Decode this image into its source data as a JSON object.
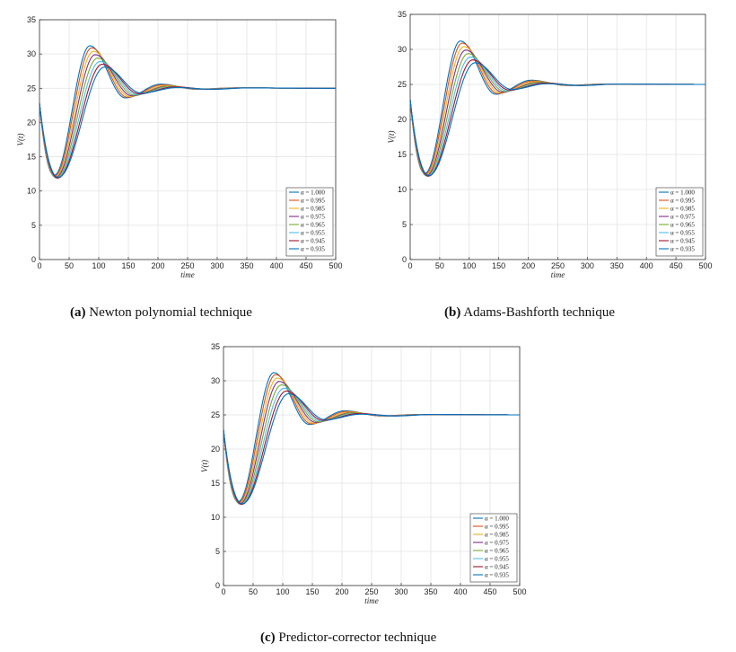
{
  "figure": {
    "captions": [
      {
        "letter": "(a)",
        "text": " Newton polynomial technique"
      },
      {
        "letter": "(b)",
        "text": " Adams-Bashforth technique"
      },
      {
        "letter": "(c)",
        "text": " Predictor-corrector technique"
      }
    ]
  },
  "chart_data": [
    {
      "type": "line",
      "title": "",
      "xlabel": "time",
      "ylabel": "V(t)",
      "xlim": [
        0,
        500
      ],
      "ylim": [
        0,
        35
      ],
      "xticks": [
        "0",
        "50",
        "100",
        "150",
        "200",
        "250",
        "300",
        "350",
        "400",
        "450",
        "500"
      ],
      "yticks": [
        "0",
        "5",
        "10",
        "15",
        "20",
        "25",
        "30",
        "35"
      ],
      "grid": true,
      "legend_position": "lower-right",
      "series": [
        {
          "name": "α = 1.000",
          "color": "#0072BD",
          "min_x": 25,
          "min_y": 12.3,
          "peak_x": 85,
          "peak_y": 31.2,
          "trough_x": 145,
          "trough_y": 23.6,
          "second_peak_x": 205,
          "second_peak_y": 25.6,
          "steady": 25.0
        },
        {
          "name": "α = 0.995",
          "color": "#D95319",
          "min_x": 26,
          "min_y": 12.2,
          "peak_x": 88,
          "peak_y": 30.9,
          "trough_x": 148,
          "trough_y": 23.7,
          "second_peak_x": 208,
          "second_peak_y": 25.5,
          "steady": 25.0
        },
        {
          "name": "α = 0.985",
          "color": "#EDB120",
          "min_x": 27,
          "min_y": 12.1,
          "peak_x": 91,
          "peak_y": 30.4,
          "trough_x": 152,
          "trough_y": 23.8,
          "second_peak_x": 212,
          "second_peak_y": 25.4,
          "steady": 25.0
        },
        {
          "name": "α = 0.975",
          "color": "#7E2F8E",
          "min_x": 28,
          "min_y": 12.0,
          "peak_x": 94,
          "peak_y": 29.9,
          "trough_x": 156,
          "trough_y": 23.9,
          "second_peak_x": 216,
          "second_peak_y": 25.3,
          "steady": 25.0
        },
        {
          "name": "α = 0.965",
          "color": "#77AC30",
          "min_x": 29,
          "min_y": 11.9,
          "peak_x": 98,
          "peak_y": 29.4,
          "trough_x": 160,
          "trough_y": 24.0,
          "second_peak_x": 220,
          "second_peak_y": 25.3,
          "steady": 25.0
        },
        {
          "name": "α = 0.955",
          "color": "#4DBEEE",
          "min_x": 30,
          "min_y": 11.9,
          "peak_x": 102,
          "peak_y": 28.9,
          "trough_x": 164,
          "trough_y": 24.1,
          "second_peak_x": 224,
          "second_peak_y": 25.2,
          "steady": 25.0
        },
        {
          "name": "α = 0.945",
          "color": "#A2142F",
          "min_x": 31,
          "min_y": 11.9,
          "peak_x": 106,
          "peak_y": 28.5,
          "trough_x": 168,
          "trough_y": 24.2,
          "second_peak_x": 228,
          "second_peak_y": 25.2,
          "steady": 25.0
        },
        {
          "name": "α = 0.935",
          "color": "#0072BD",
          "min_x": 32,
          "min_y": 12.0,
          "peak_x": 110,
          "peak_y": 28.1,
          "trough_x": 172,
          "trough_y": 24.3,
          "second_peak_x": 232,
          "second_peak_y": 25.1,
          "steady": 25.0
        }
      ]
    },
    {
      "type": "line",
      "title": "",
      "xlabel": "time",
      "ylabel": "V(t)",
      "xlim": [
        0,
        500
      ],
      "ylim": [
        0,
        35
      ],
      "xticks": [
        "0",
        "50",
        "100",
        "150",
        "200",
        "250",
        "300",
        "350",
        "400",
        "450",
        "500"
      ],
      "yticks": [
        "0",
        "5",
        "10",
        "15",
        "20",
        "25",
        "30",
        "35"
      ],
      "grid": true,
      "legend_position": "lower-right",
      "series": [
        {
          "name": "α = 1.000",
          "color": "#0072BD",
          "min_x": 25,
          "min_y": 12.3,
          "peak_x": 85,
          "peak_y": 31.2,
          "trough_x": 145,
          "trough_y": 23.6,
          "second_peak_x": 205,
          "second_peak_y": 25.6,
          "steady": 25.0
        },
        {
          "name": "α = 0.995",
          "color": "#D95319",
          "min_x": 26,
          "min_y": 12.2,
          "peak_x": 88,
          "peak_y": 30.9,
          "trough_x": 148,
          "trough_y": 23.7,
          "second_peak_x": 208,
          "second_peak_y": 25.5,
          "steady": 25.0
        },
        {
          "name": "α = 0.985",
          "color": "#EDB120",
          "min_x": 27,
          "min_y": 12.1,
          "peak_x": 91,
          "peak_y": 30.4,
          "trough_x": 152,
          "trough_y": 23.8,
          "second_peak_x": 212,
          "second_peak_y": 25.4,
          "steady": 25.0
        },
        {
          "name": "α = 0.975",
          "color": "#7E2F8E",
          "min_x": 28,
          "min_y": 12.0,
          "peak_x": 94,
          "peak_y": 29.9,
          "trough_x": 156,
          "trough_y": 23.9,
          "second_peak_x": 216,
          "second_peak_y": 25.3,
          "steady": 25.0
        },
        {
          "name": "α = 0.965",
          "color": "#77AC30",
          "min_x": 29,
          "min_y": 11.9,
          "peak_x": 98,
          "peak_y": 29.4,
          "trough_x": 160,
          "trough_y": 24.0,
          "second_peak_x": 220,
          "second_peak_y": 25.3,
          "steady": 25.0
        },
        {
          "name": "α = 0.955",
          "color": "#4DBEEE",
          "min_x": 30,
          "min_y": 11.9,
          "peak_x": 102,
          "peak_y": 28.9,
          "trough_x": 164,
          "trough_y": 24.1,
          "second_peak_x": 224,
          "second_peak_y": 25.2,
          "steady": 25.0
        },
        {
          "name": "α = 0.945",
          "color": "#A2142F",
          "min_x": 31,
          "min_y": 11.9,
          "peak_x": 106,
          "peak_y": 28.5,
          "trough_x": 168,
          "trough_y": 24.2,
          "second_peak_x": 228,
          "second_peak_y": 25.2,
          "steady": 25.0
        },
        {
          "name": "α = 0.935",
          "color": "#0072BD",
          "min_x": 32,
          "min_y": 12.0,
          "peak_x": 110,
          "peak_y": 28.1,
          "trough_x": 172,
          "trough_y": 24.3,
          "second_peak_x": 232,
          "second_peak_y": 25.1,
          "steady": 25.0
        }
      ]
    },
    {
      "type": "line",
      "title": "",
      "xlabel": "time",
      "ylabel": "V(t)",
      "xlim": [
        0,
        500
      ],
      "ylim": [
        0,
        35
      ],
      "xticks": [
        "0",
        "50",
        "100",
        "150",
        "200",
        "250",
        "300",
        "350",
        "400",
        "450",
        "500"
      ],
      "yticks": [
        "0",
        "5",
        "10",
        "15",
        "20",
        "25",
        "30",
        "35"
      ],
      "grid": true,
      "legend_position": "lower-right",
      "series": [
        {
          "name": "α = 1.000",
          "color": "#0072BD",
          "min_x": 25,
          "min_y": 12.3,
          "peak_x": 85,
          "peak_y": 31.2,
          "trough_x": 145,
          "trough_y": 23.6,
          "second_peak_x": 205,
          "second_peak_y": 25.6,
          "steady": 25.0
        },
        {
          "name": "α = 0.995",
          "color": "#D95319",
          "min_x": 26,
          "min_y": 12.2,
          "peak_x": 88,
          "peak_y": 30.9,
          "trough_x": 148,
          "trough_y": 23.7,
          "second_peak_x": 208,
          "second_peak_y": 25.5,
          "steady": 25.0
        },
        {
          "name": "α = 0.985",
          "color": "#EDB120",
          "min_x": 27,
          "min_y": 12.1,
          "peak_x": 91,
          "peak_y": 30.4,
          "trough_x": 152,
          "trough_y": 23.8,
          "second_peak_x": 212,
          "second_peak_y": 25.4,
          "steady": 25.0
        },
        {
          "name": "α = 0.975",
          "color": "#7E2F8E",
          "min_x": 28,
          "min_y": 12.0,
          "peak_x": 94,
          "peak_y": 29.9,
          "trough_x": 156,
          "trough_y": 23.9,
          "second_peak_x": 216,
          "second_peak_y": 25.3,
          "steady": 25.0
        },
        {
          "name": "α = 0.965",
          "color": "#77AC30",
          "min_x": 29,
          "min_y": 11.9,
          "peak_x": 98,
          "peak_y": 29.4,
          "trough_x": 160,
          "trough_y": 24.0,
          "second_peak_x": 220,
          "second_peak_y": 25.3,
          "steady": 25.0
        },
        {
          "name": "α = 0.955",
          "color": "#4DBEEE",
          "min_x": 30,
          "min_y": 11.9,
          "peak_x": 102,
          "peak_y": 28.9,
          "trough_x": 164,
          "trough_y": 24.1,
          "second_peak_x": 224,
          "second_peak_y": 25.2,
          "steady": 25.0
        },
        {
          "name": "α = 0.945",
          "color": "#A2142F",
          "min_x": 31,
          "min_y": 11.9,
          "peak_x": 106,
          "peak_y": 28.5,
          "trough_x": 168,
          "trough_y": 24.2,
          "second_peak_x": 228,
          "second_peak_y": 25.2,
          "steady": 25.0
        },
        {
          "name": "α = 0.935",
          "color": "#0072BD",
          "min_x": 32,
          "min_y": 12.0,
          "peak_x": 110,
          "peak_y": 28.1,
          "trough_x": 172,
          "trough_y": 24.3,
          "second_peak_x": 232,
          "second_peak_y": 25.1,
          "steady": 25.0
        }
      ]
    }
  ]
}
